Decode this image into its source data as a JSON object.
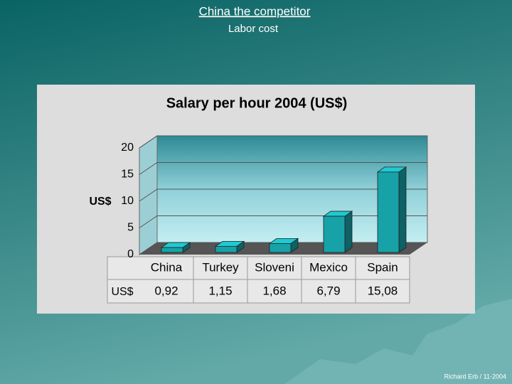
{
  "slide": {
    "title": "China the competitor",
    "subtitle": "Labor cost",
    "footer": "Richard Erb / 11-2004"
  },
  "chart_data": {
    "type": "bar3d",
    "title": "Salary per hour 2004 (US$)",
    "y_label": "US$",
    "categories": [
      "China",
      "Turkey",
      "Sloveni",
      "Mexico",
      "Spain"
    ],
    "values": [
      0.92,
      1.15,
      1.68,
      6.79,
      15.08
    ],
    "value_labels": [
      "0,92",
      "1,15",
      "1,68",
      "6,79",
      "15,08"
    ],
    "table_row_label": "US$",
    "color": "#17a2a8",
    "ylim": [
      0,
      20
    ],
    "yticks": [
      0,
      5,
      10,
      15,
      20
    ],
    "grid": true
  }
}
